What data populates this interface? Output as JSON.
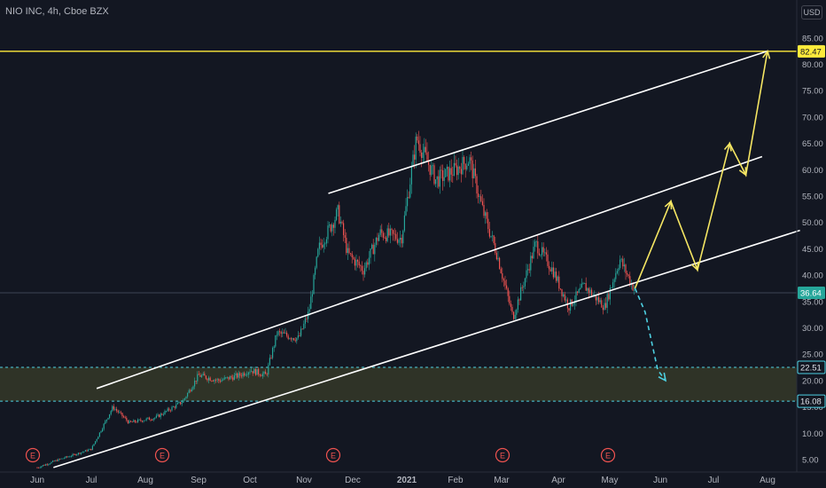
{
  "header": {
    "title": "NIO INC, 4h, Cboe BZX",
    "currency_button": "USD"
  },
  "colors": {
    "background": "#131722",
    "up": "#26a69a",
    "down": "#ef5350",
    "channel": "#ffffff",
    "projection": "#f5e663",
    "last_price": "#26a69a",
    "zone": "#3a3d2a",
    "zone_border": "#4dd0e1",
    "target_line": "#ffeb3b",
    "earnings": "#ef5350"
  },
  "icons": {
    "earnings_marker": "letter-e-circle-icon"
  },
  "chart_data": {
    "type": "candlestick",
    "x_labels": [
      "Jun",
      "Jul",
      "Aug",
      "Sep",
      "Oct",
      "Nov",
      "Dec",
      "2021",
      "Feb",
      "Mar",
      "Apr",
      "May",
      "Jun",
      "Jul",
      "Aug"
    ],
    "y_ticks": [
      "5.00",
      "10.00",
      "15.00",
      "20.00",
      "25.00",
      "30.00",
      "35.00",
      "40.00",
      "45.00",
      "50.00",
      "55.00",
      "60.00",
      "65.00",
      "70.00",
      "75.00",
      "80.00",
      "85.00"
    ],
    "ylim": [
      3,
      88
    ],
    "last_price": "36.64",
    "price_tags": [
      "82.47",
      "22.51",
      "16.08"
    ],
    "horizontal_lines": [
      82.47
    ],
    "zone": [
      16.08,
      22.51
    ],
    "earnings_markers": [
      "E",
      "E",
      "E",
      "E",
      "E"
    ],
    "price_path": [
      [
        0,
        3.5
      ],
      [
        0.4,
        5
      ],
      [
        1,
        7
      ],
      [
        1.4,
        15
      ],
      [
        1.7,
        12
      ],
      [
        2.2,
        13
      ],
      [
        2.7,
        16
      ],
      [
        3,
        21
      ],
      [
        3.4,
        20
      ],
      [
        3.8,
        21
      ],
      [
        4,
        22
      ],
      [
        4.3,
        21
      ],
      [
        4.5,
        29
      ],
      [
        4.9,
        28
      ],
      [
        5.1,
        33
      ],
      [
        5.3,
        45
      ],
      [
        5.7,
        52
      ],
      [
        5.9,
        44
      ],
      [
        6.2,
        41
      ],
      [
        6.5,
        48
      ],
      [
        6.9,
        47
      ],
      [
        7.2,
        66
      ],
      [
        7.6,
        58
      ],
      [
        8,
        60
      ],
      [
        8.3,
        62
      ],
      [
        8.6,
        52
      ],
      [
        8.9,
        44
      ],
      [
        9.2,
        32
      ],
      [
        9.6,
        46
      ],
      [
        9.9,
        41
      ],
      [
        10.2,
        34
      ],
      [
        10.5,
        38
      ],
      [
        10.9,
        34
      ],
      [
        11.2,
        43
      ],
      [
        11.5,
        37
      ]
    ],
    "channel_lines": [
      {
        "from": [
          0.3,
          3.5
        ],
        "to": [
          14.6,
          48.5
        ]
      },
      {
        "from": [
          1.1,
          18.5
        ],
        "to": [
          13.9,
          62.5
        ]
      },
      {
        "from": [
          5.5,
          55.5
        ],
        "to": [
          14.0,
          82.5
        ]
      }
    ],
    "projection_path": [
      [
        11.5,
        37.5
      ],
      [
        12.2,
        54
      ],
      [
        12.7,
        41
      ],
      [
        13.3,
        65
      ],
      [
        13.6,
        59
      ],
      [
        14.0,
        82.5
      ]
    ],
    "projection_dashed": [
      [
        11.5,
        37.5
      ],
      [
        11.7,
        33
      ],
      [
        11.95,
        22
      ],
      [
        12.1,
        20
      ]
    ]
  }
}
